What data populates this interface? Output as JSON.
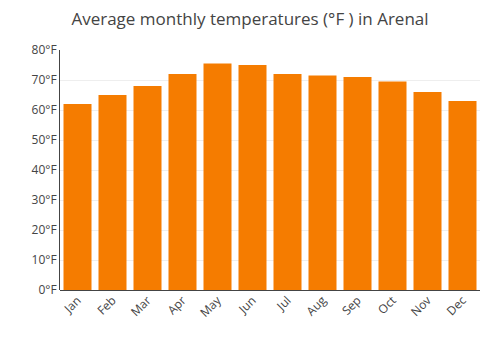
{
  "chart_data": {
    "type": "bar",
    "title": "Average monthly temperatures (°F ) in Arenal",
    "categories": [
      "Jan",
      "Feb",
      "Mar",
      "Apr",
      "May",
      "Jun",
      "Jul",
      "Aug",
      "Sep",
      "Oct",
      "Nov",
      "Dec"
    ],
    "values": [
      62,
      65,
      68,
      72,
      75.5,
      75,
      72,
      71.5,
      71,
      69.5,
      66,
      63
    ],
    "color": "#F57C00",
    "ylim": [
      0,
      80
    ],
    "yticks": [
      {
        "value": 0,
        "label": "0°F"
      },
      {
        "value": 10,
        "label": "10°F"
      },
      {
        "value": 20,
        "label": "20°F"
      },
      {
        "value": 30,
        "label": "30°F"
      },
      {
        "value": 40,
        "label": "40°F"
      },
      {
        "value": 50,
        "label": "50°F"
      },
      {
        "value": 60,
        "label": "60°F"
      },
      {
        "value": 70,
        "label": "70°F"
      },
      {
        "value": 80,
        "label": "80°F"
      }
    ],
    "grid": true
  }
}
